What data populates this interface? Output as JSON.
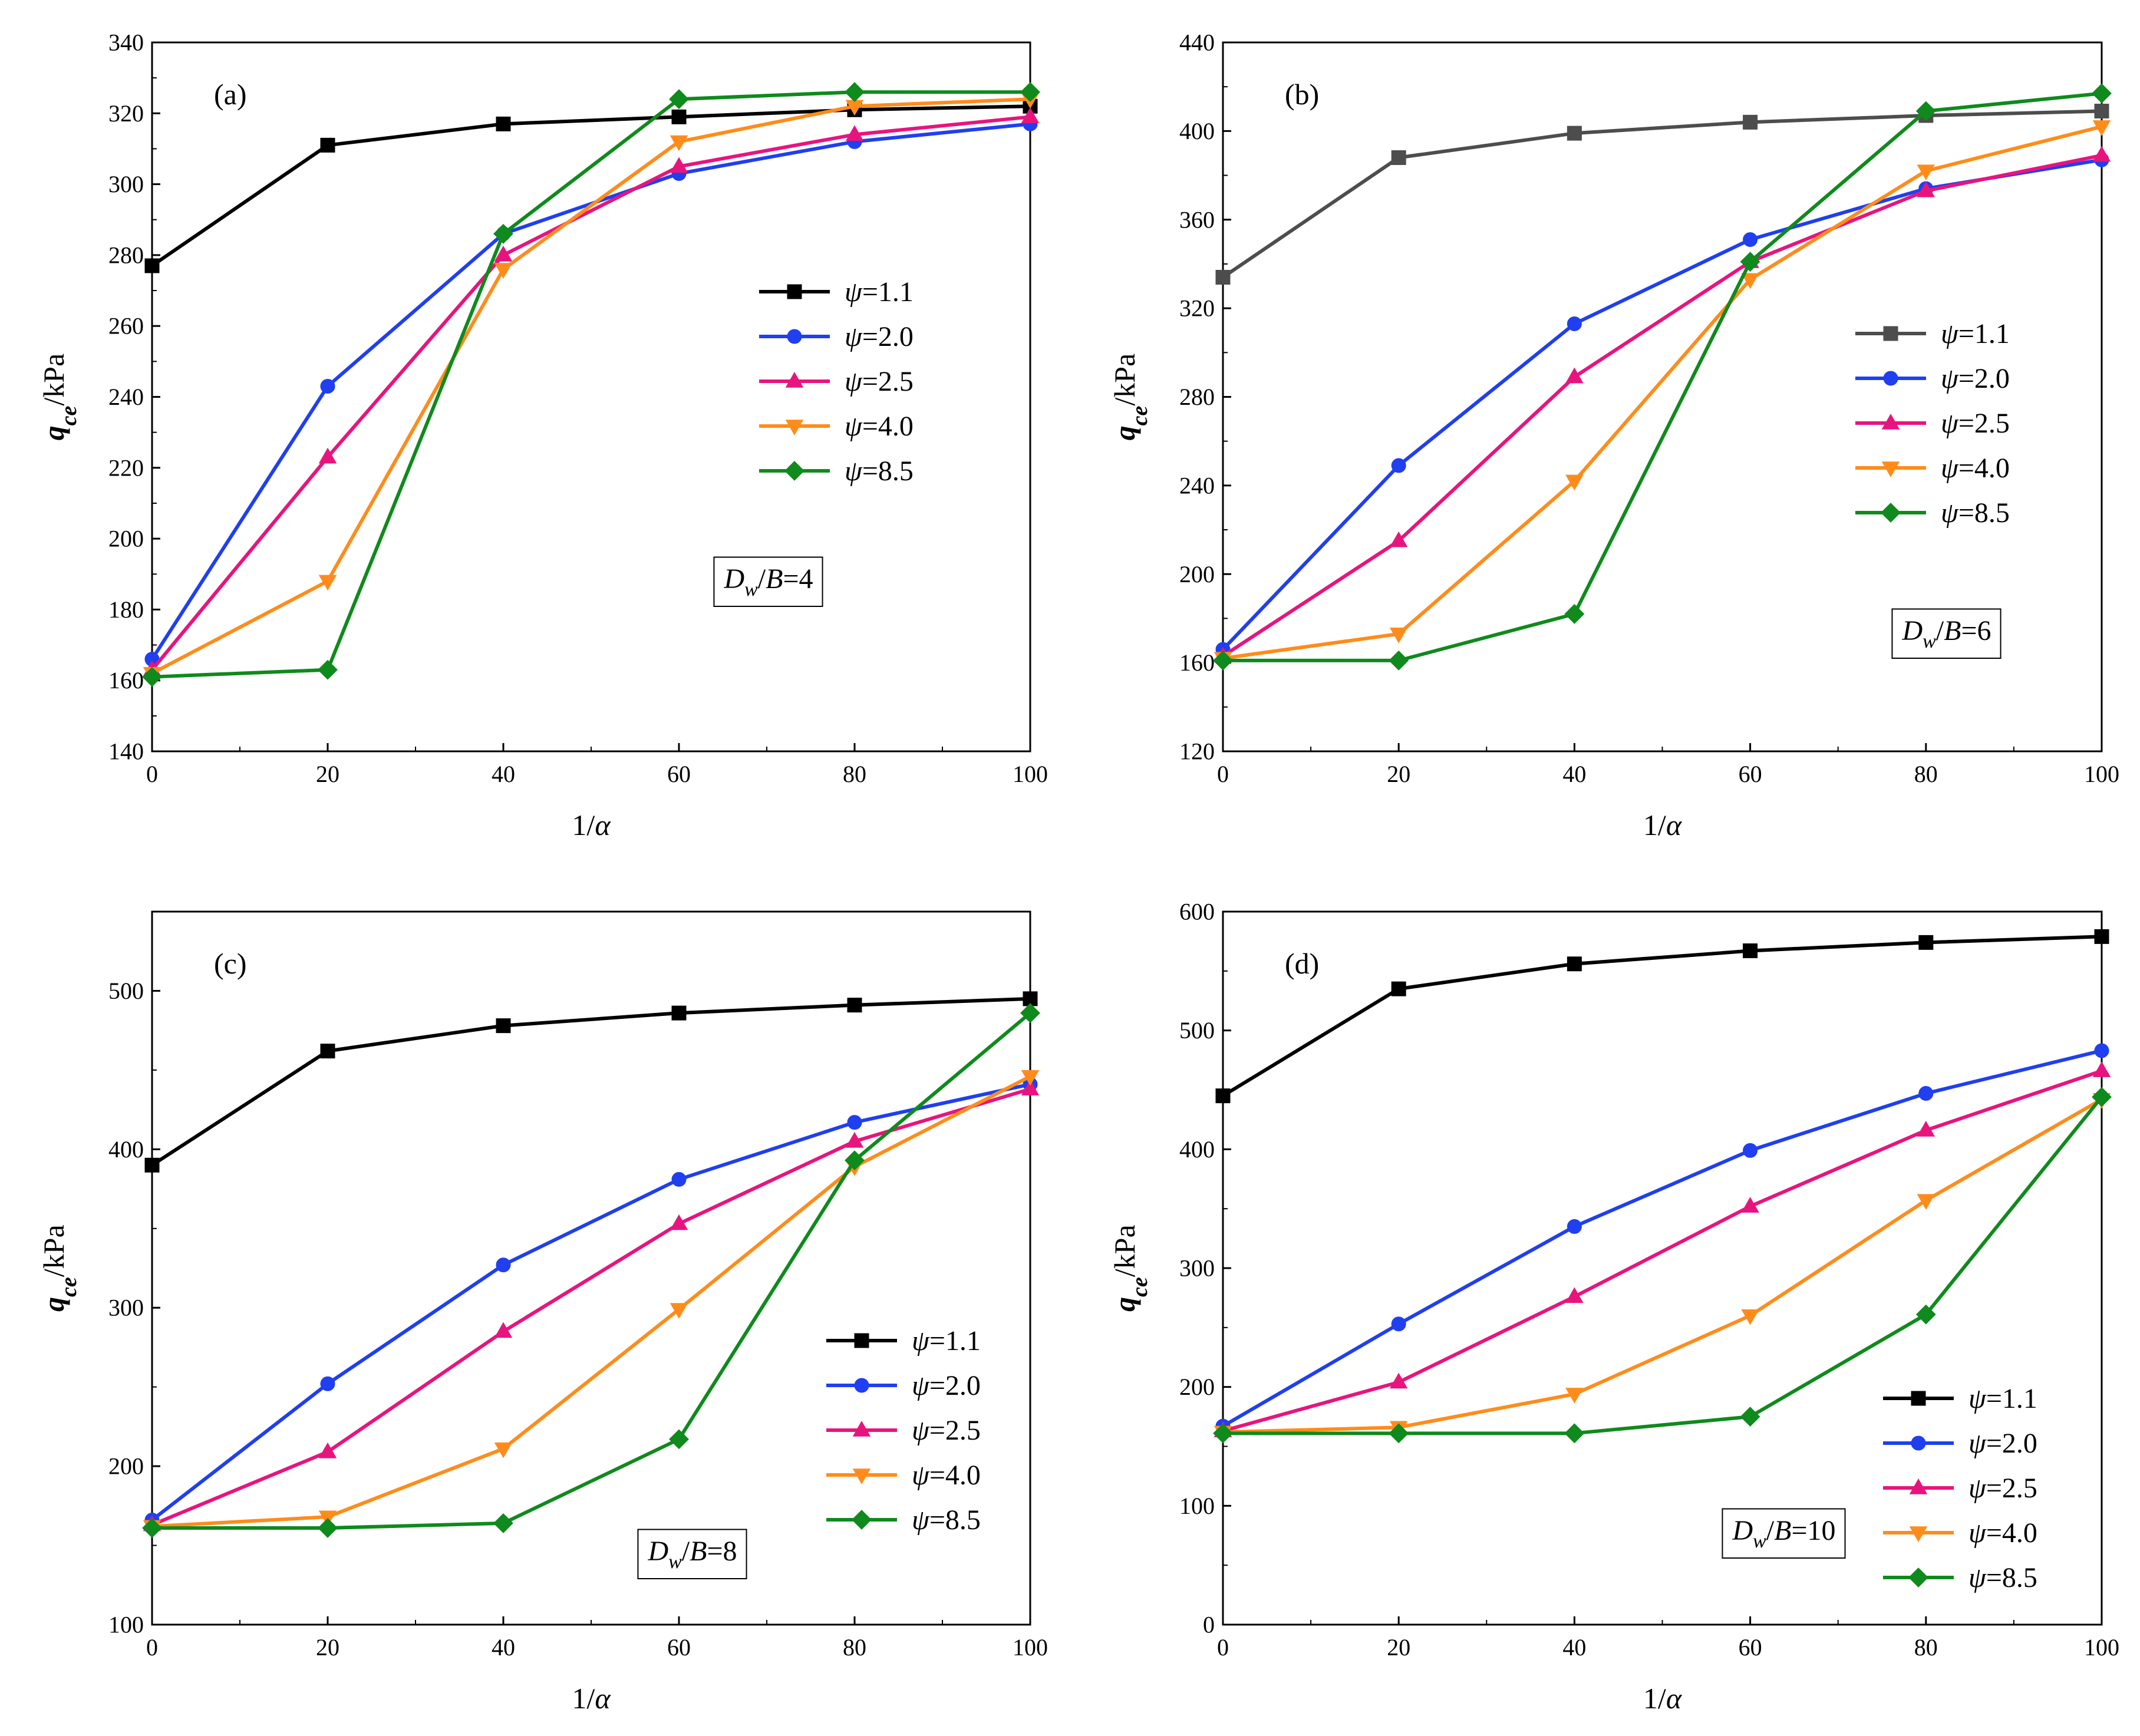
{
  "chart_data": [
    {
      "type": "line",
      "panel_label": "(a)",
      "xlabel": "1/α",
      "ylabel": "q_ce/kPa",
      "xlim": [
        0,
        100
      ],
      "ylim": [
        140,
        340
      ],
      "xticks": [
        0,
        20,
        40,
        60,
        80,
        100
      ],
      "yticks": [
        140,
        160,
        180,
        200,
        220,
        240,
        260,
        280,
        300,
        320,
        340
      ],
      "annotation": "Dw/B=4",
      "legend_position": "right-middle",
      "x": [
        0,
        20,
        40,
        60,
        80,
        100
      ],
      "series": [
        {
          "name": "ψ=1.1",
          "color": "#000000",
          "marker": "square",
          "values": [
            277,
            311,
            317,
            319,
            321,
            322
          ]
        },
        {
          "name": "ψ=2.0",
          "color": "#1f3ff0",
          "marker": "circle",
          "values": [
            166,
            243,
            286,
            303,
            312,
            317
          ]
        },
        {
          "name": "ψ=2.5",
          "color": "#e8147e",
          "marker": "triangle-up",
          "values": [
            163,
            223,
            280,
            305,
            314,
            319
          ]
        },
        {
          "name": "ψ=4.0",
          "color": "#ff8c1a",
          "marker": "triangle-down",
          "values": [
            162,
            188,
            276,
            312,
            322,
            324
          ]
        },
        {
          "name": "ψ=8.5",
          "color": "#0f8a1c",
          "marker": "diamond",
          "values": [
            161,
            163,
            286,
            324,
            326,
            326
          ]
        }
      ]
    },
    {
      "type": "line",
      "panel_label": "(b)",
      "xlabel": "1/α",
      "ylabel": "q_ce/kPa",
      "xlim": [
        0,
        100
      ],
      "ylim": [
        120,
        440
      ],
      "xticks": [
        0,
        20,
        40,
        60,
        80,
        100
      ],
      "yticks": [
        120,
        160,
        200,
        240,
        280,
        320,
        360,
        400,
        440
      ],
      "annotation": "Dw/B=6",
      "legend_position": "right-middle",
      "x": [
        0,
        20,
        40,
        60,
        80,
        100
      ],
      "series": [
        {
          "name": "ψ=1.1",
          "color": "#4d4d4d",
          "marker": "square",
          "values": [
            334,
            388,
            399,
            404,
            407,
            409
          ]
        },
        {
          "name": "ψ=2.0",
          "color": "#1f3ff0",
          "marker": "circle",
          "values": [
            166,
            249,
            313,
            351,
            374,
            387
          ]
        },
        {
          "name": "ψ=2.5",
          "color": "#e8147e",
          "marker": "triangle-up",
          "values": [
            163,
            215,
            289,
            341,
            373,
            389
          ]
        },
        {
          "name": "ψ=4.0",
          "color": "#ff8c1a",
          "marker": "triangle-down",
          "values": [
            162,
            173,
            242,
            333,
            382,
            402
          ]
        },
        {
          "name": "ψ=8.5",
          "color": "#0f8a1c",
          "marker": "diamond",
          "values": [
            161,
            161,
            182,
            341,
            409,
            417
          ]
        }
      ]
    },
    {
      "type": "line",
      "panel_label": "(c)",
      "xlabel": "1/α",
      "ylabel": "q_ce/kPa",
      "xlim": [
        0,
        100
      ],
      "ylim": [
        100,
        550
      ],
      "xticks": [
        0,
        20,
        40,
        60,
        80,
        100
      ],
      "yticks": [
        100,
        200,
        300,
        400,
        500
      ],
      "annotation": "Dw/B=8",
      "legend_position": "bottom-right",
      "x": [
        0,
        20,
        40,
        60,
        80,
        100
      ],
      "series": [
        {
          "name": "ψ=1.1",
          "color": "#000000",
          "marker": "square",
          "values": [
            390,
            462,
            478,
            486,
            491,
            495
          ]
        },
        {
          "name": "ψ=2.0",
          "color": "#1f3ff0",
          "marker": "circle",
          "values": [
            166,
            252,
            327,
            381,
            417,
            441
          ]
        },
        {
          "name": "ψ=2.5",
          "color": "#e8147e",
          "marker": "triangle-up",
          "values": [
            163,
            209,
            285,
            353,
            405,
            438
          ]
        },
        {
          "name": "ψ=4.0",
          "color": "#ff8c1a",
          "marker": "triangle-down",
          "values": [
            162,
            168,
            211,
            299,
            389,
            446
          ]
        },
        {
          "name": "ψ=8.5",
          "color": "#0f8a1c",
          "marker": "diamond",
          "values": [
            161,
            161,
            164,
            217,
            393,
            486
          ]
        }
      ]
    },
    {
      "type": "line",
      "panel_label": "(d)",
      "xlabel": "1/α",
      "ylabel": "q_ce/kPa",
      "xlim": [
        0,
        100
      ],
      "ylim": [
        0,
        600
      ],
      "xticks": [
        0,
        20,
        40,
        60,
        80,
        100
      ],
      "yticks": [
        0,
        100,
        200,
        300,
        400,
        500,
        600
      ],
      "annotation": "Dw/B=10",
      "legend_position": "bottom-right",
      "x": [
        0,
        20,
        40,
        60,
        80,
        100
      ],
      "series": [
        {
          "name": "ψ=1.1",
          "color": "#000000",
          "marker": "square",
          "values": [
            445,
            535,
            556,
            567,
            574,
            579
          ]
        },
        {
          "name": "ψ=2.0",
          "color": "#1f3ff0",
          "marker": "circle",
          "values": [
            167,
            253,
            335,
            399,
            447,
            483
          ]
        },
        {
          "name": "ψ=2.5",
          "color": "#e8147e",
          "marker": "triangle-up",
          "values": [
            163,
            204,
            276,
            352,
            416,
            466
          ]
        },
        {
          "name": "ψ=4.0",
          "color": "#ff8c1a",
          "marker": "triangle-down",
          "values": [
            162,
            166,
            194,
            260,
            357,
            442
          ]
        },
        {
          "name": "ψ=8.5",
          "color": "#0f8a1c",
          "marker": "diamond",
          "values": [
            161,
            161,
            161,
            175,
            261,
            444
          ]
        }
      ]
    }
  ]
}
